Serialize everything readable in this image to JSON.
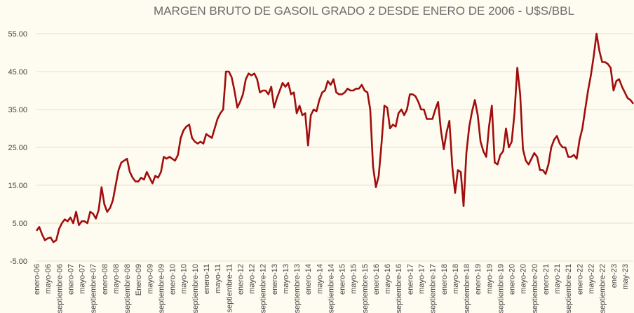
{
  "chart_data": {
    "type": "line",
    "title": "MARGEN BRUTO DE GASOIL GRADO 2 DESDE ENERO DE 2006 - U$S/BBL",
    "xlabel": "",
    "ylabel": "",
    "ylim": [
      -5,
      55
    ],
    "yticks": [
      "-5.00",
      "5.00",
      "15.00",
      "25.00",
      "35.00",
      "45.00",
      "55.00"
    ],
    "grid": true,
    "legend": "none",
    "series_color": "#a00d0d",
    "x_tick_labels": [
      {
        "i": 0,
        "label": "enero-06"
      },
      {
        "i": 4,
        "label": "mayo-06"
      },
      {
        "i": 8,
        "label": "septiembre-06"
      },
      {
        "i": 12,
        "label": "enero-07"
      },
      {
        "i": 16,
        "label": "mayo-07"
      },
      {
        "i": 20,
        "label": "septiembre-07"
      },
      {
        "i": 24,
        "label": "enero-08"
      },
      {
        "i": 28,
        "label": "mayo-08"
      },
      {
        "i": 32,
        "label": "septiembre-08"
      },
      {
        "i": 36,
        "label": "Enero-09"
      },
      {
        "i": 40,
        "label": "mayo-09"
      },
      {
        "i": 44,
        "label": "septiembre-09"
      },
      {
        "i": 48,
        "label": "enero-10"
      },
      {
        "i": 52,
        "label": "mayo-10"
      },
      {
        "i": 56,
        "label": "septiembre-10"
      },
      {
        "i": 60,
        "label": "enero-11"
      },
      {
        "i": 64,
        "label": "mayo-11"
      },
      {
        "i": 68,
        "label": "septiembre-11"
      },
      {
        "i": 72,
        "label": "enero-12"
      },
      {
        "i": 76,
        "label": "mayo-12"
      },
      {
        "i": 80,
        "label": "septiembre-12"
      },
      {
        "i": 84,
        "label": "enero-13"
      },
      {
        "i": 88,
        "label": "mayo-13"
      },
      {
        "i": 92,
        "label": "septiembre-13"
      },
      {
        "i": 96,
        "label": "enero-14"
      },
      {
        "i": 100,
        "label": "mayo-14"
      },
      {
        "i": 104,
        "label": "septiembre-14"
      },
      {
        "i": 108,
        "label": "enero-15"
      },
      {
        "i": 112,
        "label": "mayo-15"
      },
      {
        "i": 116,
        "label": "septiembre-15"
      },
      {
        "i": 120,
        "label": "enero-16"
      },
      {
        "i": 124,
        "label": "mayo-16"
      },
      {
        "i": 128,
        "label": "septiembre-16"
      },
      {
        "i": 132,
        "label": "enero-17"
      },
      {
        "i": 136,
        "label": "mayo-17"
      },
      {
        "i": 140,
        "label": "septiembre-17"
      },
      {
        "i": 144,
        "label": "enero-18"
      },
      {
        "i": 148,
        "label": "mayo-18"
      },
      {
        "i": 152,
        "label": "septiembre-18"
      },
      {
        "i": 156,
        "label": "enero-19"
      },
      {
        "i": 160,
        "label": "mayo-19"
      },
      {
        "i": 164,
        "label": "septiembre-19"
      },
      {
        "i": 168,
        "label": "enero-20"
      },
      {
        "i": 172,
        "label": "mayo-20"
      },
      {
        "i": 176,
        "label": "septiembre-20"
      },
      {
        "i": 180,
        "label": "enero-21"
      },
      {
        "i": 184,
        "label": "mayo-21"
      },
      {
        "i": 188,
        "label": "septiembre-21"
      },
      {
        "i": 192,
        "label": "enero-22"
      },
      {
        "i": 196,
        "label": "mayo-22"
      },
      {
        "i": 200,
        "label": "septiembre-22"
      },
      {
        "i": 204,
        "label": "ene-23"
      },
      {
        "i": 208,
        "label": "may-23"
      }
    ],
    "series": [
      {
        "values": [
          3,
          4,
          2,
          0.5,
          1,
          1.2,
          0,
          0.5,
          3.5,
          5,
          6,
          5.5,
          6.5,
          5,
          8,
          4.5,
          5.5,
          5.5,
          5,
          8,
          7.5,
          6.2,
          8.5,
          14.5,
          10,
          8,
          9,
          11,
          15,
          19,
          21,
          21.5,
          22,
          18.5,
          17,
          16,
          16,
          17,
          16.5,
          18.5,
          17,
          15.5,
          17.5,
          17,
          18.5,
          22.5,
          22,
          22.5,
          22,
          21.5,
          23,
          27.5,
          29.5,
          30.5,
          31,
          27.5,
          26.5,
          26,
          26.5,
          26,
          28.5,
          28,
          27.5,
          30,
          32.5,
          34,
          35,
          45,
          45,
          43.5,
          40,
          35.5,
          37,
          39,
          43,
          44.5,
          44,
          44.5,
          43,
          39.5,
          40,
          40,
          39,
          41,
          35.5,
          38,
          40,
          42,
          41,
          42,
          39,
          39.5,
          34,
          36,
          33.5,
          34,
          25.5,
          33.5,
          35,
          34.5,
          37.5,
          39.5,
          40,
          42.5,
          41.5,
          43,
          39.5,
          39,
          39,
          39.5,
          40.5,
          40,
          40,
          40.5,
          40.5,
          41.5,
          40,
          39.5,
          35,
          20,
          14.5,
          17.5,
          26,
          36,
          35.5,
          30,
          31,
          30.5,
          34,
          35,
          33.5,
          35,
          39,
          39,
          38.5,
          37,
          35,
          35,
          32.5,
          32.5,
          32.5,
          35,
          37,
          29.5,
          24.5,
          29,
          32,
          20,
          13,
          19,
          18.5,
          9.5,
          23.5,
          30.5,
          34.5,
          37.5,
          33.5,
          26.5,
          24,
          22.5,
          30.5,
          36,
          21,
          20.5,
          23,
          24,
          30,
          25,
          26.5,
          34,
          46,
          39,
          24.5,
          21.5,
          20.5,
          22,
          23.5,
          22.5,
          19,
          19,
          18,
          20.5,
          25,
          27,
          28,
          26,
          25,
          25,
          22.5,
          22.5,
          23,
          22,
          27,
          30,
          35,
          40,
          44,
          49,
          55,
          50.5,
          47.5,
          47.5,
          47,
          46,
          40,
          42.5,
          43,
          41,
          39.5,
          38,
          37.5,
          36.5
        ]
      }
    ]
  }
}
